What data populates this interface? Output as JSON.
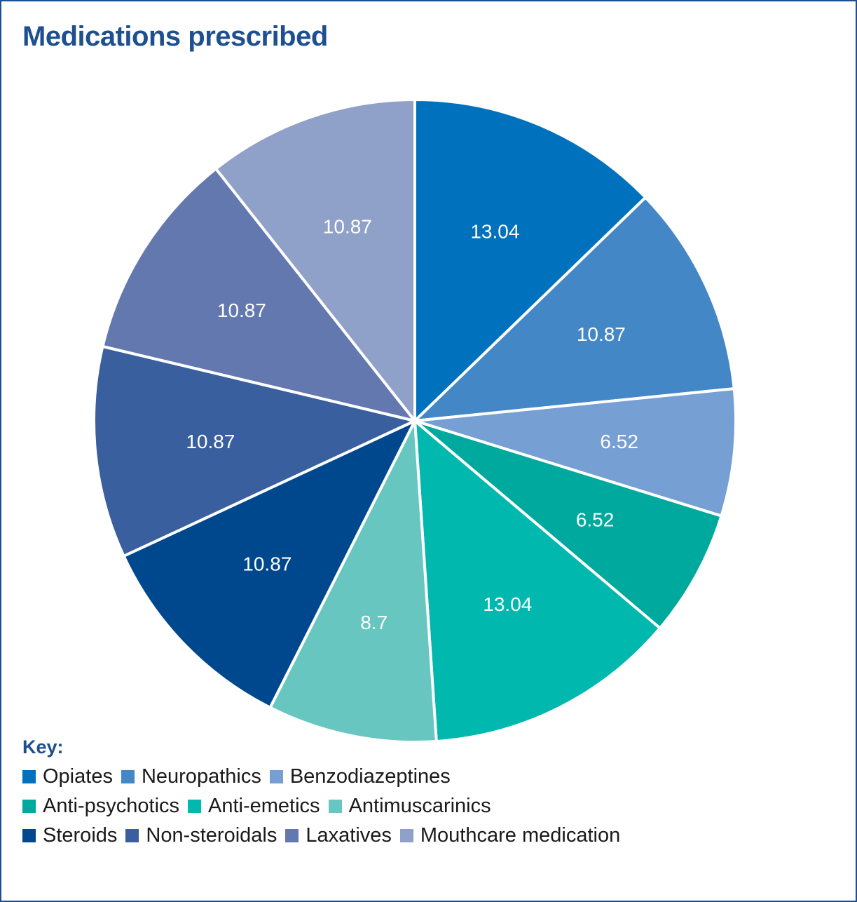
{
  "chart_data": {
    "type": "pie",
    "title": "Medications prescribed",
    "legend_title": "Key:",
    "legend_placement": "bottom-left",
    "slices": [
      {
        "label": "Opiates",
        "value": 13.04,
        "display": "13.04",
        "color": "#0071bc"
      },
      {
        "label": "Neuropathics",
        "value": 10.87,
        "display": "10.87",
        "color": "#4487c7"
      },
      {
        "label": "Benzodiazeptines",
        "value": 6.52,
        "display": "6.52",
        "color": "#769fd3"
      },
      {
        "label": "Anti-psychotics",
        "value": 6.52,
        "display": "6.52",
        "color": "#00a99d"
      },
      {
        "label": "Anti-emetics",
        "value": 13.04,
        "display": "13.04",
        "color": "#00b8ad"
      },
      {
        "label": "Antimuscarinics",
        "value": 8.7,
        "display": "8.7",
        "color": "#68c6c0"
      },
      {
        "label": "Steroids",
        "value": 10.87,
        "display": "10.87",
        "color": "#00488e"
      },
      {
        "label": "Non-steroidals",
        "value": 10.87,
        "display": "10.87",
        "color": "#3a5f9e"
      },
      {
        "label": "Laxatives",
        "value": 10.87,
        "display": "10.87",
        "color": "#6478b0"
      },
      {
        "label": "Mouthcare medication",
        "value": 10.87,
        "display": "10.87",
        "color": "#8fa0c9"
      }
    ]
  }
}
